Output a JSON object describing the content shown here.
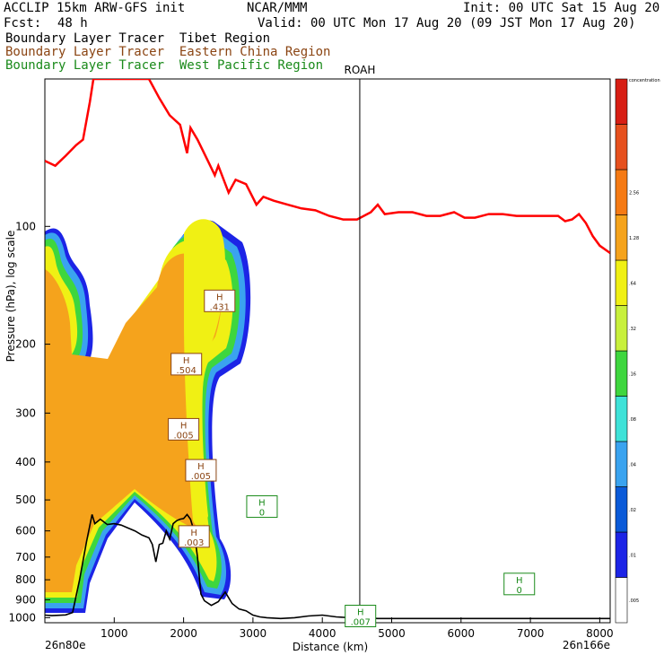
{
  "header": {
    "line1_left": "ACCLIP 15km ARW-GFS init",
    "line1_center": "NCAR/MMM",
    "line1_right": "Init: 00 UTC Sat 15 Aug 20",
    "fcst_label": "Fcst:",
    "fcst_value": "48 h",
    "valid": "Valid: 00 UTC Mon 17 Aug 20 (09 JST Mon 17 Aug 20)",
    "legend": [
      {
        "text": "Boundary Layer Tracer  Tibet Region",
        "color": "#000000"
      },
      {
        "text": "Boundary Layer Tracer  Eastern China Region",
        "color": "#8b4513"
      },
      {
        "text": "Boundary Layer Tracer  West Pacific Region",
        "color": "#1a8a1a"
      }
    ]
  },
  "chart_data": {
    "type": "cross-section",
    "xlabel": "Distance (km)",
    "ylabel": "Pressure (hPa), log scale",
    "x_ticks": [
      "1000",
      "2000",
      "3000",
      "4000",
      "5000",
      "6000",
      "7000",
      "8000"
    ],
    "y_ticks": [
      "100",
      "200",
      "300",
      "400",
      "500",
      "600",
      "700",
      "800",
      "900",
      "1000"
    ],
    "xlim": [
      0,
      8150
    ],
    "ylim": [
      1030,
      42
    ],
    "y_scale": "log",
    "start_label": "26n80e",
    "end_label": "26n166e",
    "vertical_marker": {
      "label": "ROAH",
      "x": 4540
    },
    "highs": [
      {
        "label": "H",
        "value": ".431",
        "x": 2520,
        "p": 155,
        "color": "#8b4513"
      },
      {
        "label": "H",
        "value": ".504",
        "x": 2040,
        "p": 225,
        "color": "#8b4513"
      },
      {
        "label": "H",
        "value": ".005",
        "x": 2000,
        "p": 330,
        "color": "#8b4513"
      },
      {
        "label": "H",
        "value": ".005",
        "x": 2250,
        "p": 420,
        "color": "#8b4513"
      },
      {
        "label": "H",
        "value": ".003",
        "x": 2150,
        "p": 620,
        "color": "#8b4513"
      },
      {
        "label": "H",
        "value": "0",
        "x": 3130,
        "p": 520,
        "color": "#1a8a1a"
      },
      {
        "label": "H",
        "value": ".007",
        "x": 4550,
        "p": 990,
        "color": "#1a8a1a"
      },
      {
        "label": "H",
        "value": "0",
        "x": 6840,
        "p": 820,
        "color": "#1a8a1a"
      }
    ],
    "tropopause": {
      "color": "#ff0000",
      "x": [
        0,
        150,
        300,
        450,
        550,
        650,
        700,
        1500,
        1650,
        1800,
        1950,
        2050,
        2100,
        2200,
        2350,
        2450,
        2500,
        2650,
        2750,
        2900,
        3050,
        3150,
        3300,
        3500,
        3700,
        3900,
        4100,
        4300,
        4500,
        4700,
        4800,
        4900,
        5100,
        5300,
        5500,
        5700,
        5900,
        6050,
        6200,
        6400,
        6600,
        6800,
        7000,
        7200,
        7400,
        7500,
        7600,
        7700,
        7800,
        7900,
        8000,
        8150
      ],
      "p": [
        68,
        70,
        66,
        62,
        60,
        48,
        42,
        42,
        47,
        52,
        55,
        65,
        56,
        60,
        68,
        74,
        70,
        82,
        76,
        78,
        88,
        84,
        86,
        88,
        90,
        91,
        94,
        96,
        96,
        92,
        88,
        93,
        92,
        92,
        94,
        94,
        92,
        95,
        95,
        93,
        93,
        94,
        94,
        94,
        94,
        97,
        96,
        93,
        98,
        106,
        112,
        117
      ]
    },
    "terrain": {
      "color": "#000000",
      "x": [
        0,
        100,
        200,
        300,
        400,
        500,
        600,
        680,
        720,
        800,
        900,
        1000,
        1100,
        1200,
        1300,
        1400,
        1500,
        1550,
        1600,
        1650,
        1700,
        1750,
        1800,
        1850,
        1900,
        1950,
        2000,
        2050,
        2100,
        2150,
        2200,
        2250,
        2300,
        2400,
        2500,
        2600,
        2700,
        2800,
        2900,
        3000,
        3100,
        3200,
        3400,
        3600,
        3800,
        4000,
        4200,
        4400,
        4600,
        4800,
        5000,
        6000,
        7000,
        8150
      ],
      "p": [
        985,
        988,
        986,
        984,
        970,
        800,
        640,
        545,
        575,
        560,
        578,
        575,
        580,
        590,
        600,
        615,
        625,
        650,
        720,
        650,
        645,
        600,
        630,
        575,
        565,
        560,
        558,
        545,
        560,
        600,
        700,
        870,
        905,
        930,
        910,
        860,
        920,
        950,
        960,
        985,
        995,
        1000,
        1005,
        1000,
        990,
        985,
        995,
        1000,
        1000,
        1005,
        1005,
        1005,
        1005,
        1005
      ]
    },
    "colorbar": {
      "colors": [
        "#ffffff",
        "#1c24e6",
        "#0a5ad8",
        "#3aa3ef",
        "#3ee2d8",
        "#3ed63e",
        "#c8f03c",
        "#f0f014",
        "#f5a31c",
        "#f57a14",
        "#e6501e",
        "#d71e14"
      ],
      "labels": [
        ".005",
        ".01",
        ".02",
        ".04",
        ".08",
        ".16",
        ".32",
        ".64",
        "1.28",
        "2.56",
        "concentration"
      ]
    }
  }
}
